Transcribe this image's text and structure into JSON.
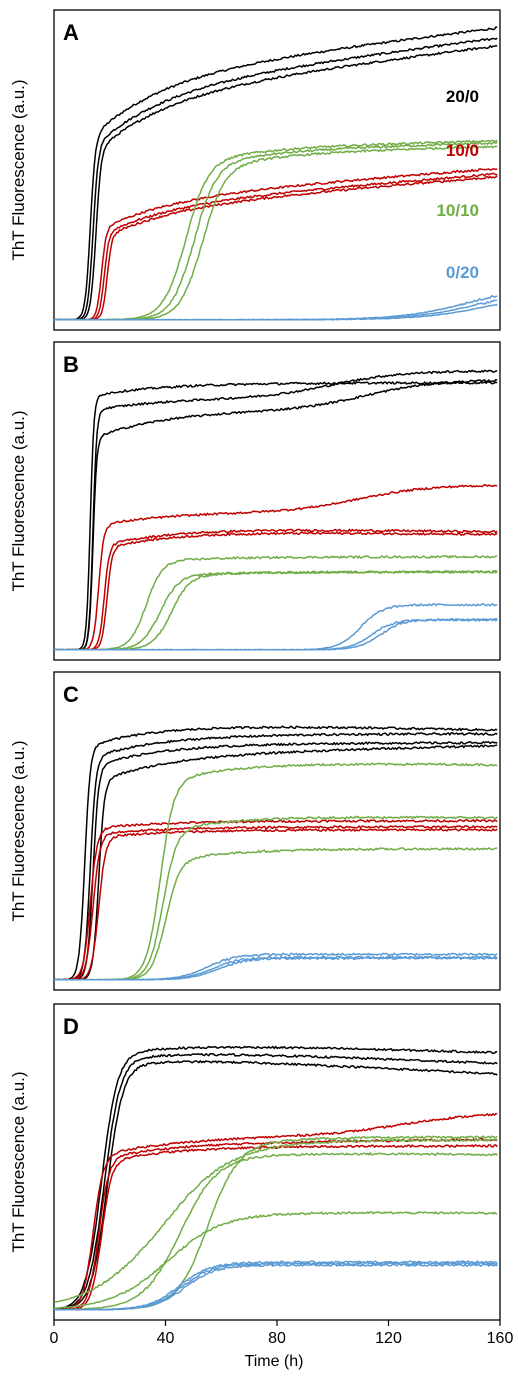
{
  "chart_data": {
    "type": "line",
    "x_range": [
      0,
      160
    ],
    "x_ticks": [
      0,
      40,
      80,
      120,
      160
    ],
    "x_tick_labels": [
      "0",
      "40",
      "80",
      "120",
      "160"
    ],
    "xlabel": "Time (h)",
    "ylabel": "ThT Fluorescence (a.u.)",
    "colors": {
      "20/0": "#000000",
      "10/0": "#c00000",
      "10/10": "#70ad47",
      "0/20": "#5b9bd5"
    },
    "series_labels": [
      {
        "text": "20/0",
        "color": "#000000"
      },
      {
        "text": "10/0",
        "color": "#c00000"
      },
      {
        "text": "10/10",
        "color": "#70ad47"
      },
      {
        "text": "0/20",
        "color": "#5b9bd5"
      }
    ],
    "panels": [
      {
        "label": "A",
        "show_series_labels": true,
        "curves": [
          {
            "group": "20/0",
            "lag": 13,
            "k": 1.1,
            "plateau": 0.8,
            "drift": 0.2,
            "slow": 0.25
          },
          {
            "group": "20/0",
            "lag": 14,
            "k": 1.1,
            "plateau": 0.76,
            "drift": 0.22,
            "slow": 0.25
          },
          {
            "group": "20/0",
            "lag": 15,
            "k": 1.1,
            "plateau": 0.74,
            "drift": 0.22,
            "slow": 0.25
          },
          {
            "group": "10/0",
            "lag": 17,
            "k": 1.2,
            "plateau": 0.4,
            "drift": 0.25,
            "slow": 0.25
          },
          {
            "group": "10/0",
            "lag": 18,
            "k": 1.2,
            "plateau": 0.38,
            "drift": 0.27,
            "slow": 0.25
          },
          {
            "group": "10/0",
            "lag": 19,
            "k": 1.2,
            "plateau": 0.37,
            "drift": 0.28,
            "slow": 0.25
          },
          {
            "group": "10/10",
            "lag": 47,
            "k": 0.25,
            "plateau": 0.57,
            "drift": 0.05,
            "slow": 0.1
          },
          {
            "group": "10/10",
            "lag": 50,
            "k": 0.25,
            "plateau": 0.56,
            "drift": 0.06,
            "slow": 0.1
          },
          {
            "group": "10/10",
            "lag": 53,
            "k": 0.25,
            "plateau": 0.55,
            "drift": 0.06,
            "slow": 0.1
          },
          {
            "group": "0/20",
            "lag": 150,
            "k": 0.08,
            "plateau": 0.12,
            "drift": 0,
            "slow": 0
          },
          {
            "group": "0/20",
            "lag": 154,
            "k": 0.08,
            "plateau": 0.11,
            "drift": 0,
            "slow": 0
          },
          {
            "group": "0/20",
            "lag": 158,
            "k": 0.08,
            "plateau": 0.1,
            "drift": 0,
            "slow": 0
          }
        ]
      },
      {
        "label": "B",
        "show_series_labels": false,
        "curves": [
          {
            "group": "20/0",
            "lag": 13,
            "k": 1.5,
            "plateau": 0.89,
            "drift": 0,
            "slow": 0.05
          },
          {
            "group": "20/0",
            "lag": 14,
            "k": 1.5,
            "plateau": 0.84,
            "drift": 0,
            "slow": 0.05,
            "rise": 0.09,
            "rise_t": 100
          },
          {
            "group": "20/0",
            "lag": 14,
            "k": 1.5,
            "plateau": 0.8,
            "drift": 0,
            "slow": 0.12,
            "rise": 0.1,
            "rise_t": 112
          },
          {
            "group": "10/0",
            "lag": 16,
            "k": 1.1,
            "plateau": 0.46,
            "drift": 0,
            "slow": 0.1,
            "rise": 0.09,
            "rise_t": 110
          },
          {
            "group": "10/0",
            "lag": 18,
            "k": 1.1,
            "plateau": 0.41,
            "drift": -0.04,
            "slow": 0.15
          },
          {
            "group": "10/0",
            "lag": 19,
            "k": 1.1,
            "plateau": 0.4,
            "drift": -0.04,
            "slow": 0.15
          },
          {
            "group": "10/10",
            "lag": 33,
            "k": 0.35,
            "plateau": 0.31,
            "drift": 0,
            "slow": 0.05
          },
          {
            "group": "10/10",
            "lag": 38,
            "k": 0.3,
            "plateau": 0.26,
            "drift": 0,
            "slow": 0.05
          },
          {
            "group": "10/10",
            "lag": 42,
            "k": 0.3,
            "plateau": 0.26,
            "drift": 0,
            "slow": 0.05
          },
          {
            "group": "0/20",
            "lag": 110,
            "k": 0.25,
            "plateau": 0.15,
            "drift": 0,
            "slow": 0
          },
          {
            "group": "0/20",
            "lag": 114,
            "k": 0.25,
            "plateau": 0.1,
            "drift": 0,
            "slow": 0
          },
          {
            "group": "0/20",
            "lag": 117,
            "k": 0.25,
            "plateau": 0.1,
            "drift": 0,
            "slow": 0
          }
        ]
      },
      {
        "label": "C",
        "show_series_labels": false,
        "curves": [
          {
            "group": "20/0",
            "lag": 11,
            "k": 1.0,
            "plateau": 0.86,
            "drift": -0.03,
            "slow": 0.1
          },
          {
            "group": "20/0",
            "lag": 13,
            "k": 1.0,
            "plateau": 0.82,
            "drift": 0,
            "slow": 0.1
          },
          {
            "group": "20/0",
            "lag": 14,
            "k": 1.0,
            "plateau": 0.79,
            "drift": 0,
            "slow": 0.1
          },
          {
            "group": "20/0",
            "lag": 16,
            "k": 1.0,
            "plateau": 0.75,
            "drift": 0.04,
            "slow": 0.12
          },
          {
            "group": "10/0",
            "lag": 13,
            "k": 0.8,
            "plateau": 0.53,
            "drift": 0,
            "slow": 0.05
          },
          {
            "group": "10/0",
            "lag": 14,
            "k": 0.8,
            "plateau": 0.51,
            "drift": 0,
            "slow": 0.05
          },
          {
            "group": "10/0",
            "lag": 16,
            "k": 0.8,
            "plateau": 0.5,
            "drift": 0,
            "slow": 0.05
          },
          {
            "group": "10/10",
            "lag": 38,
            "k": 0.4,
            "plateau": 0.73,
            "drift": -0.02,
            "slow": 0.1
          },
          {
            "group": "10/10",
            "lag": 39,
            "k": 0.4,
            "plateau": 0.55,
            "drift": -0.02,
            "slow": 0.1
          },
          {
            "group": "10/10",
            "lag": 40,
            "k": 0.4,
            "plateau": 0.44,
            "drift": -0.01,
            "slow": 0.1
          },
          {
            "group": "0/20",
            "lag": 55,
            "k": 0.2,
            "plateau": 0.085,
            "drift": 0,
            "slow": 0
          },
          {
            "group": "0/20",
            "lag": 57,
            "k": 0.2,
            "plateau": 0.075,
            "drift": 0,
            "slow": 0
          },
          {
            "group": "0/20",
            "lag": 59,
            "k": 0.2,
            "plateau": 0.072,
            "drift": 0,
            "slow": 0
          }
        ]
      },
      {
        "label": "D",
        "show_series_labels": false,
        "curves": [
          {
            "group": "20/0",
            "lag": 17,
            "k": 0.35,
            "plateau": 0.9,
            "drift": -0.04,
            "slow": 0.05
          },
          {
            "group": "20/0",
            "lag": 18,
            "k": 0.35,
            "plateau": 0.88,
            "drift": -0.06,
            "slow": 0.05
          },
          {
            "group": "20/0",
            "lag": 19,
            "k": 0.35,
            "plateau": 0.86,
            "drift": -0.08,
            "slow": 0.05
          },
          {
            "group": "10/0",
            "lag": 14,
            "k": 0.55,
            "plateau": 0.57,
            "drift": 0.05,
            "slow": 0.1,
            "rise": 0.06,
            "rise_t": 125
          },
          {
            "group": "10/0",
            "lag": 16,
            "k": 0.55,
            "plateau": 0.56,
            "drift": 0.02,
            "slow": 0.1
          },
          {
            "group": "10/0",
            "lag": 17,
            "k": 0.55,
            "plateau": 0.55,
            "drift": 0.0,
            "slow": 0.1
          },
          {
            "group": "10/10",
            "lag": 55,
            "k": 0.18,
            "plateau": 0.58,
            "drift": 0,
            "slow": 0.05
          },
          {
            "group": "10/10",
            "lag": 38,
            "k": 0.08,
            "plateau": 0.57,
            "drift": 0,
            "slow": 0.05
          },
          {
            "group": "10/10",
            "lag": 45,
            "k": 0.15,
            "plateau": 0.53,
            "drift": -0.02,
            "slow": 0.05
          },
          {
            "group": "10/10",
            "lag": 40,
            "k": 0.1,
            "plateau": 0.33,
            "drift": -0.02,
            "slow": 0.05
          },
          {
            "group": "0/20",
            "lag": 45,
            "k": 0.18,
            "plateau": 0.16,
            "drift": 0,
            "slow": 0
          },
          {
            "group": "0/20",
            "lag": 46,
            "k": 0.18,
            "plateau": 0.155,
            "drift": 0,
            "slow": 0
          },
          {
            "group": "0/20",
            "lag": 47,
            "k": 0.18,
            "plateau": 0.15,
            "drift": 0,
            "slow": 0
          }
        ]
      }
    ]
  }
}
